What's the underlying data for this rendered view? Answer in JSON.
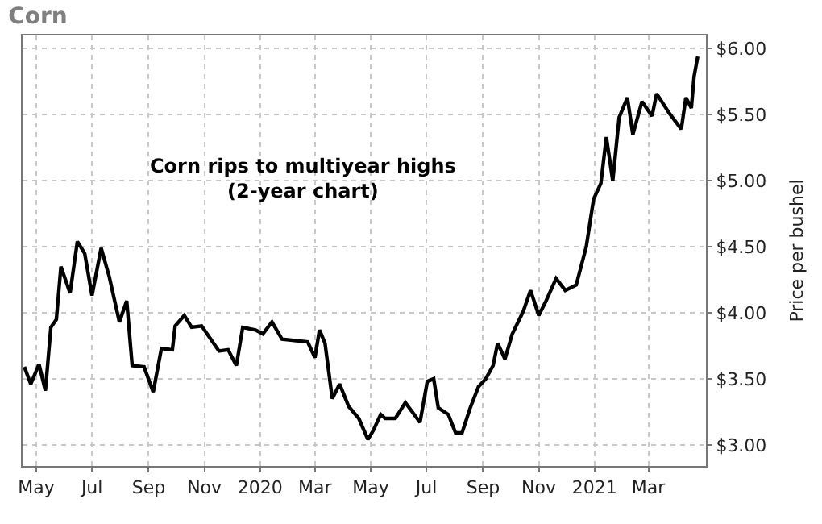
{
  "chart_data": {
    "type": "line",
    "title": "Corn",
    "ylabel": "Price per bushel",
    "annotations": [
      "Corn rips to multiyear highs\n(2-year chart)"
    ],
    "x": [
      "2019-04-18",
      "2019-04-25",
      "2019-05-04",
      "2019-05-11",
      "2019-05-17",
      "2019-05-23",
      "2019-05-28",
      "2019-06-07",
      "2019-06-15",
      "2019-06-23",
      "2019-07-01",
      "2019-07-11",
      "2019-07-20",
      "2019-07-31",
      "2019-08-08",
      "2019-08-14",
      "2019-08-27",
      "2019-09-06",
      "2019-09-15",
      "2019-09-27",
      "2019-09-30",
      "2019-10-10",
      "2019-10-18",
      "2019-10-29",
      "2019-11-17",
      "2019-11-27",
      "2019-12-06",
      "2019-12-13",
      "2019-12-27",
      "2020-01-04",
      "2020-01-14",
      "2020-01-25",
      "2020-02-22",
      "2020-03-01",
      "2020-03-06",
      "2020-03-12",
      "2020-03-20",
      "2020-03-28",
      "2020-04-07",
      "2020-04-18",
      "2020-04-28",
      "2020-05-04",
      "2020-05-12",
      "2020-05-17",
      "2020-05-28",
      "2020-06-08",
      "2020-06-24",
      "2020-07-02",
      "2020-07-09",
      "2020-07-14",
      "2020-07-25",
      "2020-08-02",
      "2020-08-09",
      "2020-08-18",
      "2020-08-27",
      "2020-09-04",
      "2020-09-12",
      "2020-09-17",
      "2020-09-25",
      "2020-10-03",
      "2020-10-15",
      "2020-10-23",
      "2020-11-01",
      "2020-11-09",
      "2020-11-20",
      "2020-11-30",
      "2020-12-12",
      "2020-12-23",
      "2020-12-31",
      "2021-01-08",
      "2021-01-14",
      "2021-01-21",
      "2021-01-28",
      "2021-02-06",
      "2021-02-12",
      "2021-02-22",
      "2021-03-05",
      "2021-03-10",
      "2021-03-24",
      "2021-04-06",
      "2021-04-11",
      "2021-04-17",
      "2021-04-20",
      "2021-04-24"
    ],
    "series": [
      {
        "color": "#000000",
        "values": [
          3.59,
          3.46,
          3.61,
          3.41,
          3.89,
          3.95,
          4.35,
          4.15,
          4.54,
          4.45,
          4.13,
          4.49,
          4.27,
          3.93,
          4.09,
          3.6,
          3.59,
          3.4,
          3.73,
          3.72,
          3.9,
          3.98,
          3.89,
          3.9,
          3.71,
          3.72,
          3.6,
          3.89,
          3.87,
          3.84,
          3.93,
          3.8,
          3.78,
          3.66,
          3.87,
          3.77,
          3.35,
          3.46,
          3.29,
          3.2,
          3.04,
          3.11,
          3.23,
          3.2,
          3.2,
          3.32,
          3.17,
          3.48,
          3.5,
          3.28,
          3.23,
          3.09,
          3.09,
          3.28,
          3.44,
          3.5,
          3.6,
          3.77,
          3.65,
          3.84,
          4.01,
          4.17,
          3.98,
          4.09,
          4.26,
          4.17,
          4.21,
          4.5,
          4.86,
          4.98,
          5.33,
          5.0,
          5.48,
          5.63,
          5.35,
          5.6,
          5.49,
          5.66,
          5.51,
          5.39,
          5.63,
          5.55,
          5.79,
          5.94
        ]
      }
    ],
    "xlim": [
      "2019-04-16",
      "2021-05-03"
    ],
    "xticks": [
      {
        "value": "2019-05-01",
        "label": "May"
      },
      {
        "value": "2019-07-01",
        "label": "Jul"
      },
      {
        "value": "2019-09-01",
        "label": "Sep"
      },
      {
        "value": "2019-11-01",
        "label": "Nov"
      },
      {
        "value": "2020-01-01",
        "label": "2020"
      },
      {
        "value": "2020-03-01",
        "label": "Mar"
      },
      {
        "value": "2020-05-01",
        "label": "May"
      },
      {
        "value": "2020-07-01",
        "label": "Jul"
      },
      {
        "value": "2020-09-01",
        "label": "Sep"
      },
      {
        "value": "2020-11-01",
        "label": "Nov"
      },
      {
        "value": "2021-01-01",
        "label": "2021"
      },
      {
        "value": "2021-03-01",
        "label": "Mar"
      }
    ],
    "ylim": [
      2.84,
      6.1
    ],
    "yticks": [
      {
        "value": 3,
        "label": "$3.00"
      },
      {
        "value": 3.5,
        "label": "$3.50"
      },
      {
        "value": 4,
        "label": "$4.00"
      },
      {
        "value": 4.5,
        "label": "$4.50"
      },
      {
        "value": 5,
        "label": "$5.00"
      },
      {
        "value": 5.5,
        "label": "$5.50"
      },
      {
        "value": 6,
        "label": "$6.00"
      }
    ],
    "grid": true,
    "marker": "none",
    "line_style": "solid"
  }
}
